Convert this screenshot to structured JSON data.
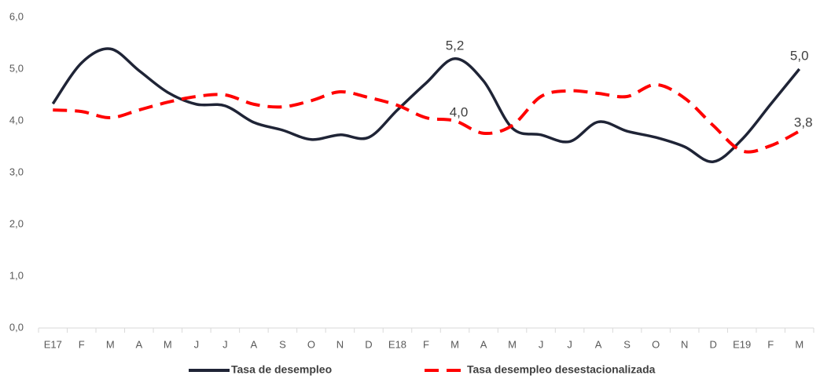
{
  "chart_data": {
    "type": "line",
    "categories": [
      "E17",
      "F",
      "M",
      "A",
      "M",
      "J",
      "J",
      "A",
      "S",
      "O",
      "N",
      "D",
      "E18",
      "F",
      "M",
      "A",
      "M",
      "J",
      "J",
      "A",
      "S",
      "O",
      "N",
      "D",
      "E19",
      "F",
      "M"
    ],
    "series": [
      {
        "name": "Tasa de desempleo",
        "color": "#1f2436",
        "dash": false,
        "values": [
          4.33,
          5.12,
          5.39,
          4.97,
          4.55,
          4.32,
          4.29,
          3.97,
          3.82,
          3.64,
          3.73,
          3.68,
          4.21,
          4.73,
          5.2,
          4.77,
          3.86,
          3.73,
          3.6,
          3.98,
          3.8,
          3.68,
          3.5,
          3.21,
          3.64,
          4.32,
          5.0
        ],
        "value_labels": [
          null,
          null,
          null,
          null,
          null,
          null,
          null,
          null,
          null,
          null,
          null,
          null,
          null,
          null,
          "5,2",
          null,
          null,
          null,
          null,
          null,
          null,
          null,
          null,
          null,
          null,
          null,
          "5,0"
        ]
      },
      {
        "name": "Tasa desempleo desestacionalizada",
        "color": "#ff0000",
        "dash": true,
        "values": [
          4.21,
          4.18,
          4.06,
          4.21,
          4.36,
          4.47,
          4.5,
          4.32,
          4.27,
          4.39,
          4.56,
          4.45,
          4.3,
          4.06,
          4.0,
          3.76,
          3.91,
          4.47,
          4.58,
          4.53,
          4.47,
          4.7,
          4.44,
          3.91,
          3.42,
          3.52,
          3.8
        ],
        "value_labels": [
          null,
          null,
          null,
          null,
          null,
          null,
          null,
          null,
          null,
          null,
          null,
          null,
          null,
          null,
          "4,0",
          null,
          null,
          null,
          null,
          null,
          null,
          null,
          null,
          null,
          null,
          null,
          "3,8"
        ]
      }
    ],
    "ylim": [
      0,
      6
    ],
    "yticks": [
      {
        "value": 0,
        "label": "0,0"
      },
      {
        "value": 1,
        "label": "1,0"
      },
      {
        "value": 2,
        "label": "2,0"
      },
      {
        "value": 3,
        "label": "3,0"
      },
      {
        "value": 4,
        "label": "4,0"
      },
      {
        "value": 5,
        "label": "5,0"
      },
      {
        "value": 6,
        "label": "6,0"
      }
    ],
    "grid": false,
    "legend": "bottom"
  }
}
